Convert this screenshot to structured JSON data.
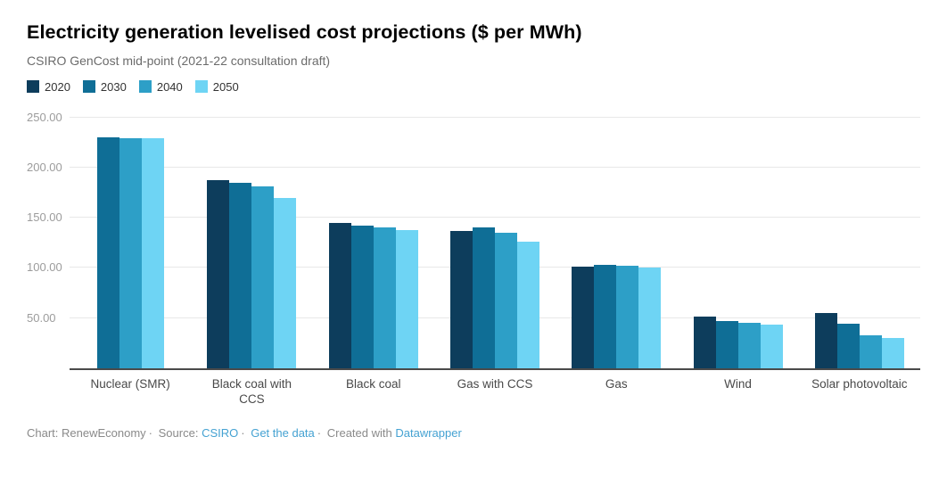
{
  "header": {
    "title": "Electricity generation levelised cost projections ($ per MWh)",
    "subtitle": "CSIRO GenCost mid-point (2021-22 consultation draft)"
  },
  "colors": {
    "series_2020": "#0d3d5c",
    "series_2030": "#0f6e96",
    "series_2040": "#2d9fc7",
    "series_2050": "#6ed4f4",
    "gridline": "#e8e8e8",
    "axis_line": "#4a4a4a",
    "link": "#45a2d2"
  },
  "chart_data": {
    "type": "bar",
    "title": "Electricity generation levelised cost projections ($ per MWh)",
    "subtitle": "CSIRO GenCost mid-point (2021-22 consultation draft)",
    "xlabel": "",
    "ylabel": "",
    "ylim": [
      0,
      250
    ],
    "grid": true,
    "legend_position": "top",
    "categories": [
      "Nuclear (SMR)",
      "Black coal with CCS",
      "Black coal",
      "Gas with CCS",
      "Gas",
      "Wind",
      "Solar photovoltaic"
    ],
    "series": [
      {
        "name": "2020",
        "color": "#0d3d5c",
        "values": [
          null,
          188,
          145,
          137,
          101,
          51,
          55
        ]
      },
      {
        "name": "2030",
        "color": "#0f6e96",
        "values": [
          230,
          185,
          142,
          140,
          103,
          47,
          44
        ]
      },
      {
        "name": "2040",
        "color": "#2d9fc7",
        "values": [
          229,
          181,
          140,
          135,
          102,
          45,
          33
        ]
      },
      {
        "name": "2050",
        "color": "#6ed4f4",
        "values": [
          229,
          170,
          138,
          126,
          100,
          43,
          30
        ]
      }
    ],
    "y_ticks": [
      {
        "value": 250,
        "label": "250.00"
      },
      {
        "value": 200,
        "label": "200.00"
      },
      {
        "value": 150,
        "label": "150.00"
      },
      {
        "value": 100,
        "label": "100.00"
      },
      {
        "value": 50,
        "label": "50.00"
      }
    ]
  },
  "footer": {
    "credit": "Chart: RenewEconomy",
    "separator": "·",
    "source_label": "Source:",
    "source_link": "CSIRO",
    "get_data_link": "Get the data",
    "created_label": "Created with",
    "created_link": "Datawrapper"
  }
}
